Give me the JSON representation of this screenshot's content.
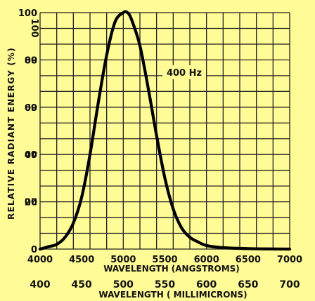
{
  "chart_data": {
    "type": "line",
    "title": "",
    "annotation": "400 Hz",
    "ylabel": "RELATIVE RADIANT ENERGY (%)",
    "xlabel": "WAVELENGTH (ANGSTROMS)",
    "xlabel_secondary": "WAVELENGTH ( MILLIMICRONS)",
    "xlim": [
      4000,
      7000
    ],
    "ylim": [
      0,
      100
    ],
    "grid": true,
    "x_ticks": [
      "4000",
      "4500",
      "5000",
      "5500",
      "6000",
      "6500",
      "7000"
    ],
    "x_ticks_secondary": [
      "400",
      "450",
      "500",
      "550",
      "600",
      "650",
      "700"
    ],
    "y_ticks": [
      "0",
      "20",
      "40",
      "60",
      "80",
      "100"
    ],
    "y_ticks_mirror": [
      "20",
      "40",
      "60",
      "80"
    ],
    "series": [
      {
        "x": [
          4000,
          4100,
          4200,
          4300,
          4400,
          4500,
          4600,
          4700,
          4800,
          4900,
          5000,
          5050,
          5100,
          5200,
          5300,
          5400,
          5500,
          5600,
          5700,
          5800,
          5900,
          6000,
          6200,
          6500,
          7000
        ],
        "values": [
          0,
          1,
          2,
          5,
          11,
          22,
          40,
          62,
          82,
          96,
          100,
          100,
          97,
          86,
          68,
          48,
          30,
          17,
          9,
          5,
          3,
          1.5,
          0.6,
          0.2,
          0
        ]
      }
    ]
  },
  "colors": {
    "background": "#fffb96",
    "grid": "#222222",
    "curve": "#000000"
  }
}
